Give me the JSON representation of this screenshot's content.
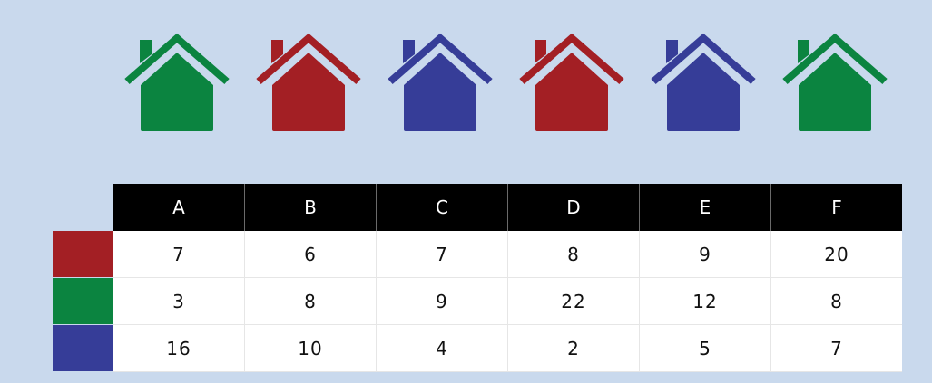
{
  "colors": {
    "red": "#a31f24",
    "green": "#0b8440",
    "blue": "#363d98"
  },
  "houses": [
    {
      "color": "green",
      "icon": "house-icon"
    },
    {
      "color": "red",
      "icon": "house-icon"
    },
    {
      "color": "blue",
      "icon": "house-icon"
    },
    {
      "color": "red",
      "icon": "house-icon"
    },
    {
      "color": "blue",
      "icon": "house-icon"
    },
    {
      "color": "green",
      "icon": "house-icon"
    }
  ],
  "table": {
    "columns": [
      "A",
      "B",
      "C",
      "D",
      "E",
      "F"
    ],
    "rows": [
      {
        "color": "red",
        "values": [
          "7",
          "6",
          "7",
          "8",
          "9",
          "20"
        ]
      },
      {
        "color": "green",
        "values": [
          "3",
          "8",
          "9",
          "22",
          "12",
          "8"
        ]
      },
      {
        "color": "blue",
        "values": [
          "16",
          "10",
          "4",
          "2",
          "5",
          "7"
        ]
      }
    ]
  }
}
